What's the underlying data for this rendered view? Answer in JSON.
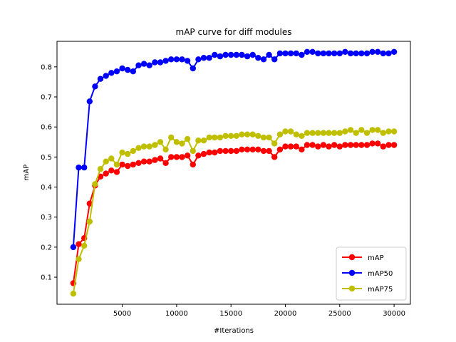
{
  "chart_data": {
    "type": "line",
    "title": "mAP curve for diff modules",
    "xlabel": "#Iterations",
    "ylabel": "mAP",
    "xlim": [
      -1000,
      31500
    ],
    "ylim": [
      0.01,
      0.885
    ],
    "xticks": [
      5000,
      10000,
      15000,
      20000,
      25000,
      30000
    ],
    "yticks": [
      0.1,
      0.2,
      0.3,
      0.4,
      0.5,
      0.6,
      0.7,
      0.8
    ],
    "grid": false,
    "legend_position": "lower right",
    "x": [
      500,
      1000,
      1500,
      2000,
      2500,
      3000,
      3500,
      4000,
      4500,
      5000,
      5500,
      6000,
      6500,
      7000,
      7500,
      8000,
      8500,
      9000,
      9500,
      10000,
      10500,
      11000,
      11500,
      12000,
      12500,
      13000,
      13500,
      14000,
      14500,
      15000,
      15500,
      16000,
      16500,
      17000,
      17500,
      18000,
      18500,
      19000,
      19500,
      20000,
      20500,
      21000,
      21500,
      22000,
      22500,
      23000,
      23500,
      24000,
      24500,
      25000,
      25500,
      26000,
      26500,
      27000,
      27500,
      28000,
      28500,
      29000,
      29500,
      30000
    ],
    "series": [
      {
        "name": "mAP",
        "color": "#ff0000",
        "values": [
          0.08,
          0.21,
          0.23,
          0.345,
          0.405,
          0.435,
          0.445,
          0.455,
          0.45,
          0.475,
          0.47,
          0.475,
          0.48,
          0.485,
          0.485,
          0.49,
          0.495,
          0.48,
          0.5,
          0.5,
          0.5,
          0.505,
          0.475,
          0.505,
          0.51,
          0.515,
          0.515,
          0.52,
          0.52,
          0.52,
          0.52,
          0.525,
          0.525,
          0.525,
          0.525,
          0.52,
          0.52,
          0.5,
          0.525,
          0.535,
          0.535,
          0.535,
          0.525,
          0.54,
          0.54,
          0.535,
          0.54,
          0.535,
          0.54,
          0.535,
          0.54,
          0.54,
          0.54,
          0.54,
          0.54,
          0.545,
          0.545,
          0.535,
          0.54,
          0.54
        ]
      },
      {
        "name": "mAP50",
        "color": "#0000ff",
        "values": [
          0.2,
          0.465,
          0.465,
          0.685,
          0.735,
          0.76,
          0.77,
          0.78,
          0.785,
          0.795,
          0.79,
          0.785,
          0.805,
          0.81,
          0.805,
          0.815,
          0.815,
          0.82,
          0.825,
          0.825,
          0.825,
          0.82,
          0.795,
          0.825,
          0.83,
          0.83,
          0.84,
          0.835,
          0.84,
          0.84,
          0.84,
          0.84,
          0.835,
          0.84,
          0.83,
          0.825,
          0.84,
          0.825,
          0.845,
          0.845,
          0.845,
          0.845,
          0.84,
          0.85,
          0.85,
          0.845,
          0.845,
          0.845,
          0.845,
          0.845,
          0.85,
          0.845,
          0.845,
          0.845,
          0.845,
          0.85,
          0.85,
          0.845,
          0.845,
          0.85
        ]
      },
      {
        "name": "mAP75",
        "color": "#bfbf00",
        "values": [
          0.045,
          0.16,
          0.205,
          0.285,
          0.41,
          0.46,
          0.485,
          0.495,
          0.475,
          0.515,
          0.51,
          0.52,
          0.53,
          0.535,
          0.535,
          0.54,
          0.55,
          0.525,
          0.565,
          0.55,
          0.545,
          0.56,
          0.52,
          0.555,
          0.555,
          0.565,
          0.565,
          0.565,
          0.57,
          0.57,
          0.57,
          0.575,
          0.575,
          0.575,
          0.57,
          0.565,
          0.565,
          0.545,
          0.575,
          0.585,
          0.585,
          0.575,
          0.57,
          0.58,
          0.58,
          0.58,
          0.58,
          0.58,
          0.58,
          0.58,
          0.585,
          0.59,
          0.58,
          0.59,
          0.58,
          0.59,
          0.59,
          0.58,
          0.585,
          0.585
        ]
      }
    ]
  }
}
